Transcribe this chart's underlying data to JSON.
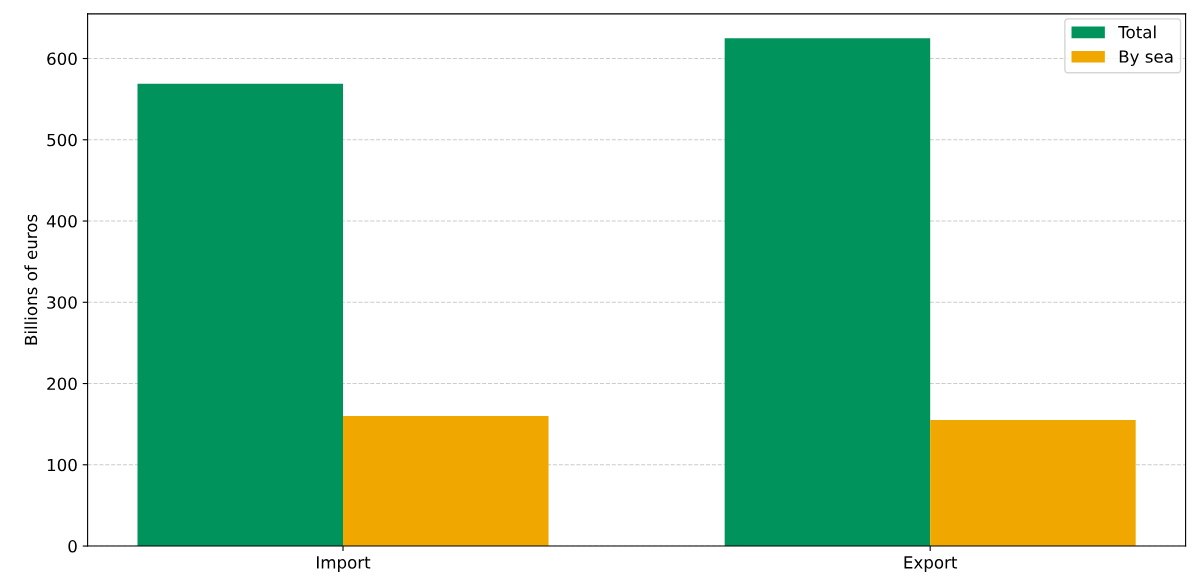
{
  "chart_data": {
    "type": "bar",
    "ylabel": "Billions of euros",
    "categories": [
      "Import",
      "Export"
    ],
    "series": [
      {
        "name": "Total",
        "color": "#00935c",
        "values": [
          569,
          625
        ]
      },
      {
        "name": "By sea",
        "color": "#f0a800",
        "values": [
          160,
          155
        ]
      }
    ],
    "ylim": [
      0,
      655
    ],
    "yticks": [
      0,
      100,
      200,
      300,
      400,
      500,
      600
    ],
    "grid": "y",
    "legend": "top right"
  }
}
